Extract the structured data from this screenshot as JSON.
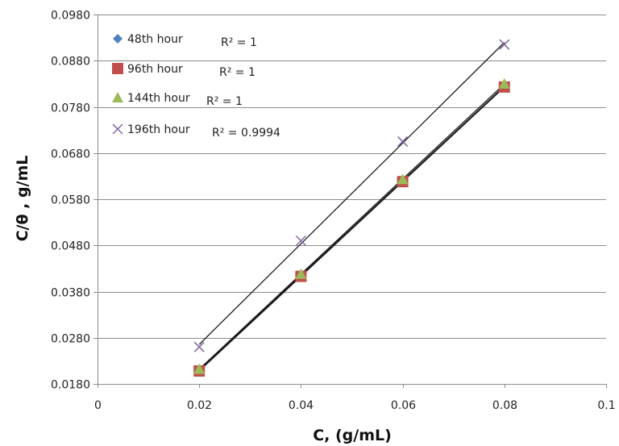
{
  "chart_data": {
    "type": "scatter",
    "xlabel": "C, (g/mL)",
    "ylabel": "C/θ , g/mL",
    "xlim": [
      0,
      0.1
    ],
    "ylim": [
      0.018,
      0.098
    ],
    "x_ticks": [
      "0",
      "0.02",
      "0.04",
      "0.06",
      "0.08",
      "0.1"
    ],
    "y_ticks": [
      "0.0180",
      "0.0280",
      "0.0380",
      "0.0480",
      "0.0580",
      "0.0680",
      "0.0780",
      "0.0880",
      "0.0980"
    ],
    "x_tick_values": [
      0,
      0.02,
      0.04,
      0.06,
      0.08,
      0.1
    ],
    "y_tick_values": [
      0.018,
      0.028,
      0.038,
      0.048,
      0.058,
      0.068,
      0.078,
      0.088,
      0.098
    ],
    "grid": "horizontal",
    "legend_position": "top-left",
    "trendlines": "linear",
    "series": [
      {
        "name": "48th hour",
        "r2": "R² = 1",
        "marker": "diamond",
        "color": "#4F81BD",
        "x": [
          0.02,
          0.04,
          0.06,
          0.08
        ],
        "y": [
          0.021,
          0.0415,
          0.062,
          0.0825
        ]
      },
      {
        "name": "96th hour",
        "r2": "R² = 1",
        "marker": "square",
        "color": "#C0504D",
        "x": [
          0.02,
          0.04,
          0.06,
          0.08
        ],
        "y": [
          0.0208,
          0.0413,
          0.0618,
          0.0823
        ]
      },
      {
        "name": "144th hour",
        "r2": "R² = 1",
        "marker": "triangle",
        "color": "#9BBB59",
        "x": [
          0.02,
          0.04,
          0.06,
          0.08
        ],
        "y": [
          0.0212,
          0.0418,
          0.0623,
          0.083
        ]
      },
      {
        "name": "196th hour",
        "r2": "R² = 0.9994",
        "marker": "x",
        "color": "#8064A2",
        "x": [
          0.02,
          0.04,
          0.06,
          0.08
        ],
        "y": [
          0.026,
          0.049,
          0.0705,
          0.0915
        ]
      }
    ]
  }
}
